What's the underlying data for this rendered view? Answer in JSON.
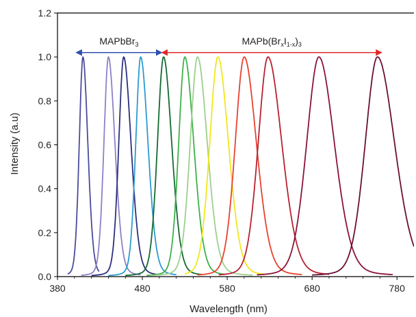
{
  "chart_data": {
    "type": "line",
    "title": "",
    "xlabel": "Wavelength (nm)",
    "ylabel": "Intensity (a.u)",
    "xlim": [
      380,
      800
    ],
    "ylim": [
      0,
      1.2
    ],
    "xticks": [
      380,
      480,
      580,
      680,
      780
    ],
    "yticks": [
      0.0,
      0.2,
      0.4,
      0.6,
      0.8,
      1.0,
      1.2
    ],
    "ytick_labels": [
      "0.0",
      "0.2",
      "0.4",
      "0.6",
      "0.8",
      "1.0",
      "1.2"
    ],
    "grid": false,
    "legend": "none",
    "annotations": [
      {
        "id": "mapbbr3",
        "label": "MAPbBr",
        "sub": "3",
        "arrow_from": 402,
        "arrow_to": 503,
        "y": 1.02,
        "color": "#3050b0"
      },
      {
        "id": "mapbbri",
        "label_parts": [
          {
            "text": "MAPb(Br"
          },
          {
            "text": "x",
            "sub": true
          },
          {
            "text": "I"
          },
          {
            "text": "1-x",
            "sub": true
          },
          {
            "text": ")"
          },
          {
            "text": "3",
            "sub": true
          }
        ],
        "arrow_from": 503,
        "arrow_to": 762,
        "y": 1.02,
        "color": "#e02828"
      }
    ],
    "series": [
      {
        "peak": 410,
        "fwhm_left": 4.5,
        "fwhm_right": 6,
        "x_start": 392,
        "x_end": 429,
        "color": "#4a4a9c"
      },
      {
        "peak": 440,
        "fwhm_left": 5.5,
        "fwhm_right": 8,
        "x_start": 408,
        "x_end": 478,
        "color": "#8d80c6"
      },
      {
        "peak": 458,
        "fwhm_left": 6,
        "fwhm_right": 9,
        "x_start": 420,
        "x_end": 500,
        "color": "#2b2f7c"
      },
      {
        "peak": 478,
        "fwhm_left": 6,
        "fwhm_right": 9,
        "x_start": 440,
        "x_end": 520,
        "color": "#2a9ad0"
      },
      {
        "peak": 505,
        "fwhm_left": 7.5,
        "fwhm_right": 10,
        "x_start": 460,
        "x_end": 550,
        "color": "#116a30"
      },
      {
        "peak": 530,
        "fwhm_left": 7.5,
        "fwhm_right": 11,
        "x_start": 485,
        "x_end": 578,
        "color": "#3eb049"
      },
      {
        "peak": 545,
        "fwhm_left": 9,
        "fwhm_right": 12,
        "x_start": 490,
        "x_end": 610,
        "color": "#9bd08c"
      },
      {
        "peak": 569,
        "fwhm_left": 10,
        "fwhm_right": 13,
        "x_start": 530,
        "x_end": 623,
        "color": "#f2e61b"
      },
      {
        "peak": 600,
        "fwhm_left": 11,
        "fwhm_right": 15,
        "x_start": 545,
        "x_end": 668,
        "color": "#e8402e"
      },
      {
        "peak": 628,
        "fwhm_left": 12,
        "fwhm_right": 17,
        "x_start": 570,
        "x_end": 700,
        "color": "#b82030"
      },
      {
        "peak": 688,
        "fwhm_left": 15,
        "fwhm_right": 19,
        "x_start": 615,
        "x_end": 775,
        "color": "#8a1236"
      },
      {
        "peak": 757,
        "fwhm_left": 15,
        "fwhm_right": 21,
        "x_start": 680,
        "x_end": 800,
        "color": "#6a0e34"
      }
    ]
  }
}
